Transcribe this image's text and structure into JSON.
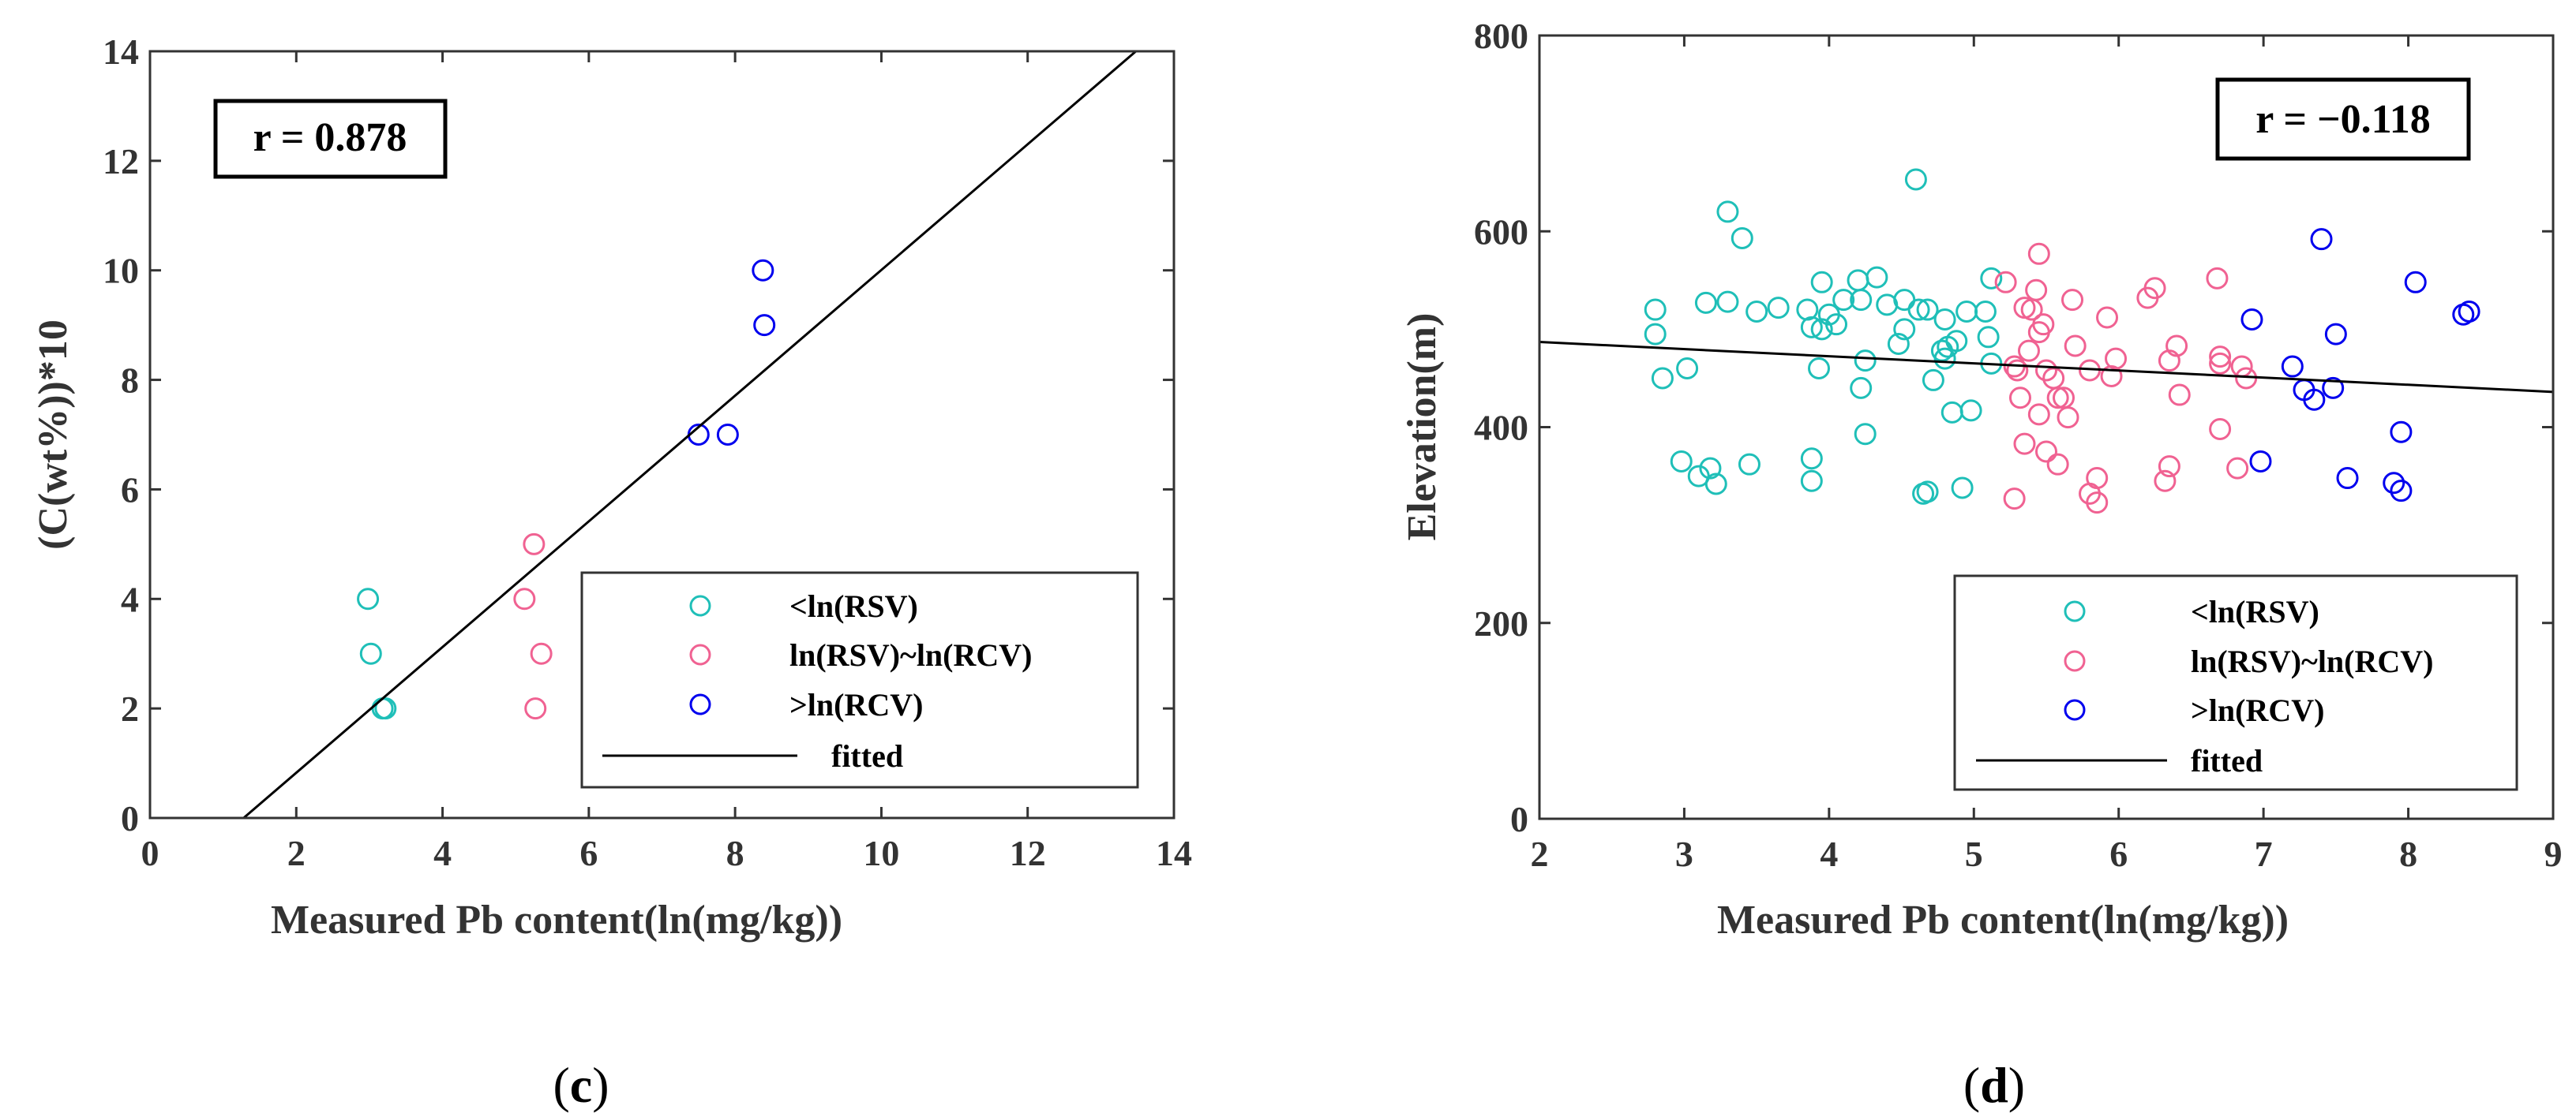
{
  "chart_data": [
    {
      "type": "scatter",
      "panel": "(c)",
      "panel_letter": "c",
      "xlabel": "Measured Pb content(ln(mg/kg))",
      "ylabel": "(C(wt%))*10",
      "xlim": [
        0,
        14
      ],
      "ylim": [
        0,
        14
      ],
      "xticks": [
        0,
        2,
        4,
        6,
        8,
        10,
        12,
        14
      ],
      "yticks": [
        0,
        2,
        4,
        6,
        8,
        10,
        12,
        14
      ],
      "annotation": "r = 0.878",
      "legend_location": "bottom-right",
      "series": [
        {
          "name": "<ln(RSV)",
          "color": "#1fbfb8",
          "points": [
            [
              2.98,
              4.0
            ],
            [
              3.02,
              3.0
            ],
            [
              3.18,
              2.0
            ],
            [
              3.22,
              2.0
            ]
          ]
        },
        {
          "name": "ln(RSV)~ln(RCV)",
          "color": "#f06292",
          "points": [
            [
              5.12,
              4.0
            ],
            [
              5.25,
              5.0
            ],
            [
              5.35,
              3.0
            ],
            [
              5.27,
              2.0
            ]
          ]
        },
        {
          "name": ">ln(RCV)",
          "color": "#0000ee",
          "points": [
            [
              7.5,
              7.0
            ],
            [
              7.9,
              7.0
            ],
            [
              8.4,
              9.0
            ],
            [
              8.38,
              10.0
            ]
          ]
        }
      ],
      "fit": {
        "name": "fitted",
        "x": [
          1.28,
          13.48
        ],
        "y": [
          0.0,
          14.0
        ]
      }
    },
    {
      "type": "scatter",
      "panel": "(d)",
      "panel_letter": "d",
      "xlabel": "Measured Pb content(ln(mg/kg))",
      "ylabel": "Elevation(m)",
      "xlim": [
        2,
        9
      ],
      "ylim": [
        0,
        800
      ],
      "xticks": [
        2,
        3,
        4,
        5,
        6,
        7,
        8,
        9
      ],
      "yticks": [
        0,
        200,
        400,
        600,
        800
      ],
      "annotation": "r = −0.118",
      "legend_location": "bottom-right",
      "series": [
        {
          "name": "<ln(RSV)",
          "color": "#1fbfb8",
          "points": [
            [
              2.8,
              520
            ],
            [
              2.8,
              495
            ],
            [
              2.85,
              450
            ],
            [
              2.98,
              365
            ],
            [
              3.02,
              460
            ],
            [
              3.1,
              350
            ],
            [
              3.15,
              527
            ],
            [
              3.18,
              358
            ],
            [
              3.22,
              342
            ],
            [
              3.3,
              620
            ],
            [
              3.3,
              528
            ],
            [
              3.4,
              593
            ],
            [
              3.45,
              362
            ],
            [
              3.5,
              518
            ],
            [
              3.65,
              522
            ],
            [
              3.85,
              520
            ],
            [
              3.88,
              502
            ],
            [
              3.88,
              368
            ],
            [
              3.88,
              345
            ],
            [
              3.93,
              460
            ],
            [
              3.95,
              548
            ],
            [
              3.95,
              500
            ],
            [
              4.0,
              515
            ],
            [
              4.05,
              505
            ],
            [
              4.1,
              530
            ],
            [
              4.2,
              550
            ],
            [
              4.22,
              530
            ],
            [
              4.22,
              440
            ],
            [
              4.25,
              468
            ],
            [
              4.25,
              393
            ],
            [
              4.33,
              553
            ],
            [
              4.4,
              525
            ],
            [
              4.48,
              485
            ],
            [
              4.52,
              530
            ],
            [
              4.52,
              500
            ],
            [
              4.6,
              653
            ],
            [
              4.62,
              520
            ],
            [
              4.65,
              332
            ],
            [
              4.68,
              520
            ],
            [
              4.68,
              334
            ],
            [
              4.72,
              448
            ],
            [
              4.78,
              478
            ],
            [
              4.8,
              510
            ],
            [
              4.8,
              470
            ],
            [
              4.82,
              482
            ],
            [
              4.85,
              415
            ],
            [
              4.88,
              488
            ],
            [
              4.92,
              338
            ],
            [
              4.95,
              518
            ],
            [
              4.98,
              417
            ],
            [
              5.08,
              518
            ],
            [
              5.1,
              492
            ],
            [
              5.12,
              552
            ],
            [
              5.12,
              465
            ]
          ]
        },
        {
          "name": "ln(RSV)~ln(RCV)",
          "color": "#f06292",
          "points": [
            [
              5.22,
              548
            ],
            [
              5.28,
              462
            ],
            [
              5.28,
              327
            ],
            [
              5.3,
              458
            ],
            [
              5.32,
              430
            ],
            [
              5.35,
              522
            ],
            [
              5.35,
              383
            ],
            [
              5.38,
              478
            ],
            [
              5.4,
              520
            ],
            [
              5.43,
              540
            ],
            [
              5.45,
              577
            ],
            [
              5.45,
              497
            ],
            [
              5.45,
              413
            ],
            [
              5.48,
              505
            ],
            [
              5.5,
              458
            ],
            [
              5.5,
              375
            ],
            [
              5.55,
              450
            ],
            [
              5.58,
              430
            ],
            [
              5.58,
              362
            ],
            [
              5.62,
              430
            ],
            [
              5.65,
              410
            ],
            [
              5.68,
              530
            ],
            [
              5.7,
              483
            ],
            [
              5.8,
              458
            ],
            [
              5.8,
              332
            ],
            [
              5.85,
              348
            ],
            [
              5.85,
              323
            ],
            [
              5.92,
              512
            ],
            [
              5.95,
              452
            ],
            [
              5.98,
              470
            ],
            [
              6.2,
              532
            ],
            [
              6.25,
              542
            ],
            [
              6.32,
              345
            ],
            [
              6.35,
              360
            ],
            [
              6.35,
              468
            ],
            [
              6.4,
              483
            ],
            [
              6.42,
              433
            ],
            [
              6.68,
              552
            ],
            [
              6.7,
              472
            ],
            [
              6.7,
              465
            ],
            [
              6.7,
              398
            ],
            [
              6.82,
              358
            ],
            [
              6.85,
              462
            ],
            [
              6.88,
              450
            ]
          ]
        },
        {
          "name": ">ln(RCV)",
          "color": "#0000ee",
          "points": [
            [
              6.92,
              510
            ],
            [
              6.98,
              365
            ],
            [
              7.2,
              462
            ],
            [
              7.28,
              438
            ],
            [
              7.35,
              428
            ],
            [
              7.4,
              592
            ],
            [
              7.48,
              440
            ],
            [
              7.5,
              495
            ],
            [
              7.58,
              348
            ],
            [
              7.9,
              343
            ],
            [
              7.95,
              395
            ],
            [
              7.95,
              335
            ],
            [
              8.05,
              548
            ],
            [
              8.38,
              515
            ],
            [
              8.42,
              518
            ]
          ]
        }
      ],
      "fit": {
        "name": "fitted",
        "x": [
          2,
          9
        ],
        "y": [
          487,
          436
        ]
      }
    }
  ]
}
